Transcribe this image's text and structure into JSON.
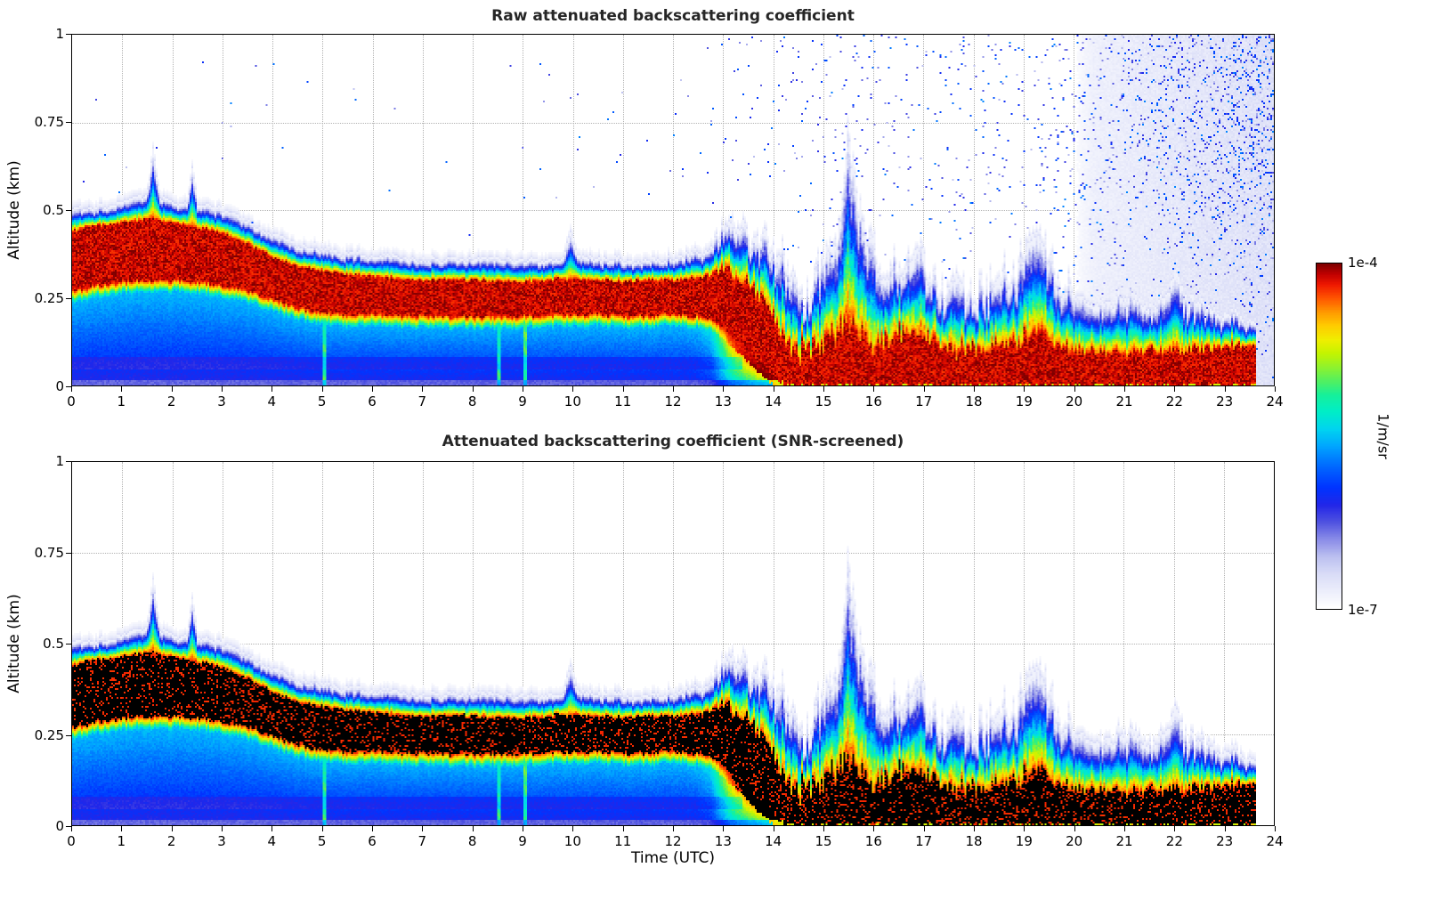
{
  "chart_data": {
    "type": "heatmap",
    "panels": {
      "raw": {
        "title": "Raw attenuated backscattering coefficient",
        "noise_shown": true,
        "black_core": false
      },
      "screened": {
        "title": "Attenuated backscattering coefficient (SNR-screened)",
        "noise_shown": false,
        "black_core": true
      }
    },
    "xlabel": "Time (UTC)",
    "ylabel": "Altitude (km)",
    "x_range": [
      0,
      24
    ],
    "y_range": [
      0,
      1
    ],
    "x_ticks": [
      "0",
      "1",
      "2",
      "3",
      "4",
      "5",
      "6",
      "7",
      "8",
      "9",
      "10",
      "11",
      "12",
      "13",
      "14",
      "15",
      "16",
      "17",
      "18",
      "19",
      "20",
      "21",
      "22",
      "23",
      "24"
    ],
    "y_tick_values": [
      0,
      0.25,
      0.5,
      0.75,
      1
    ],
    "y_tick_labels": [
      "0",
      "0.25",
      "0.5",
      "0.75",
      "1"
    ],
    "colorbar": {
      "max_label": "1e-4",
      "min_label": "1e-7",
      "unit": "1/m/sr",
      "scale": "log"
    },
    "data_end_utc": 23.65,
    "colormap": [
      [
        0.0,
        "#ffffff"
      ],
      [
        0.05,
        "#eceefb"
      ],
      [
        0.1,
        "#d9dcf7"
      ],
      [
        0.15,
        "#bcc0f0"
      ],
      [
        0.2,
        "#8a8ce8"
      ],
      [
        0.25,
        "#5053e0"
      ],
      [
        0.3,
        "#2226e8"
      ],
      [
        0.35,
        "#0033ff"
      ],
      [
        0.41,
        "#0066ff"
      ],
      [
        0.47,
        "#00a4ff"
      ],
      [
        0.52,
        "#00d4f0"
      ],
      [
        0.57,
        "#00eec8"
      ],
      [
        0.62,
        "#16f09a"
      ],
      [
        0.66,
        "#52f060"
      ],
      [
        0.7,
        "#8ef22e"
      ],
      [
        0.74,
        "#c4f400"
      ],
      [
        0.78,
        "#f0ee00"
      ],
      [
        0.82,
        "#ffcc00"
      ],
      [
        0.86,
        "#ff9900"
      ],
      [
        0.9,
        "#ff5500"
      ],
      [
        0.94,
        "#f01800"
      ],
      [
        0.97,
        "#c00000"
      ],
      [
        1.0,
        "#7d0000"
      ]
    ],
    "curves": {
      "mixed_layer_top_km": [
        [
          0,
          0.51
        ],
        [
          0.4,
          0.5
        ],
        [
          0.8,
          0.51
        ],
        [
          1.2,
          0.53
        ],
        [
          1.5,
          0.54
        ],
        [
          1.62,
          0.67
        ],
        [
          1.75,
          0.54
        ],
        [
          2.1,
          0.52
        ],
        [
          2.3,
          0.52
        ],
        [
          2.4,
          0.62
        ],
        [
          2.5,
          0.52
        ],
        [
          2.8,
          0.51
        ],
        [
          3.2,
          0.49
        ],
        [
          3.6,
          0.46
        ],
        [
          4.0,
          0.43
        ],
        [
          4.5,
          0.4
        ],
        [
          5.0,
          0.385
        ],
        [
          5.5,
          0.375
        ],
        [
          6.0,
          0.37
        ],
        [
          7.0,
          0.36
        ],
        [
          8.0,
          0.36
        ],
        [
          8.7,
          0.355
        ],
        [
          9.3,
          0.35
        ],
        [
          9.8,
          0.35
        ],
        [
          9.95,
          0.44
        ],
        [
          10.1,
          0.36
        ],
        [
          10.6,
          0.36
        ],
        [
          11.2,
          0.355
        ],
        [
          11.8,
          0.36
        ],
        [
          12.3,
          0.37
        ],
        [
          12.7,
          0.39
        ],
        [
          13.0,
          0.44
        ],
        [
          13.3,
          0.46
        ],
        [
          13.6,
          0.42
        ],
        [
          13.85,
          0.44
        ],
        [
          14.1,
          0.38
        ],
        [
          14.35,
          0.29
        ],
        [
          14.6,
          0.26
        ],
        [
          14.9,
          0.3
        ],
        [
          15.15,
          0.4
        ],
        [
          15.35,
          0.48
        ],
        [
          15.5,
          0.72
        ],
        [
          15.68,
          0.55
        ],
        [
          15.85,
          0.47
        ],
        [
          16.05,
          0.38
        ],
        [
          16.25,
          0.3
        ],
        [
          16.5,
          0.34
        ],
        [
          16.8,
          0.36
        ],
        [
          17.1,
          0.32
        ],
        [
          17.4,
          0.28
        ],
        [
          17.7,
          0.3
        ],
        [
          18.0,
          0.28
        ],
        [
          18.4,
          0.29
        ],
        [
          18.8,
          0.33
        ],
        [
          19.1,
          0.4
        ],
        [
          19.25,
          0.46
        ],
        [
          19.45,
          0.36
        ],
        [
          19.7,
          0.3
        ],
        [
          20.0,
          0.27
        ],
        [
          20.4,
          0.23
        ],
        [
          20.8,
          0.235
        ],
        [
          21.2,
          0.25
        ],
        [
          21.6,
          0.22
        ],
        [
          21.9,
          0.26
        ],
        [
          22.05,
          0.33
        ],
        [
          22.2,
          0.25
        ],
        [
          22.5,
          0.22
        ],
        [
          22.9,
          0.21
        ],
        [
          23.3,
          0.19
        ],
        [
          23.65,
          0.18
        ]
      ],
      "strong_layer_top_km": [
        [
          0,
          0.44
        ],
        [
          0.5,
          0.455
        ],
        [
          1.0,
          0.465
        ],
        [
          1.5,
          0.475
        ],
        [
          2.0,
          0.465
        ],
        [
          2.5,
          0.45
        ],
        [
          3.0,
          0.435
        ],
        [
          3.5,
          0.405
        ],
        [
          4.0,
          0.365
        ],
        [
          4.5,
          0.34
        ],
        [
          5.0,
          0.325
        ],
        [
          5.5,
          0.315
        ],
        [
          6.0,
          0.31
        ],
        [
          6.5,
          0.305
        ],
        [
          7.0,
          0.3
        ],
        [
          7.5,
          0.3
        ],
        [
          8.0,
          0.3
        ],
        [
          8.5,
          0.295
        ],
        [
          9.0,
          0.295
        ],
        [
          9.5,
          0.3
        ],
        [
          10.0,
          0.305
        ],
        [
          10.5,
          0.3
        ],
        [
          11.0,
          0.295
        ],
        [
          11.5,
          0.3
        ],
        [
          12.0,
          0.3
        ],
        [
          12.4,
          0.305
        ],
        [
          12.8,
          0.315
        ],
        [
          13.1,
          0.33
        ],
        [
          13.4,
          0.3
        ],
        [
          13.7,
          0.26
        ],
        [
          13.95,
          0.21
        ],
        [
          14.2,
          0.14
        ],
        [
          14.5,
          0.09
        ],
        [
          14.8,
          0.1
        ],
        [
          15.1,
          0.12
        ],
        [
          15.5,
          0.17
        ],
        [
          15.8,
          0.14
        ],
        [
          16.1,
          0.11
        ],
        [
          16.5,
          0.14
        ],
        [
          16.9,
          0.15
        ],
        [
          17.2,
          0.12
        ],
        [
          17.6,
          0.1
        ],
        [
          18.0,
          0.1
        ],
        [
          18.5,
          0.11
        ],
        [
          19.0,
          0.13
        ],
        [
          19.3,
          0.15
        ],
        [
          19.6,
          0.11
        ],
        [
          20.0,
          0.1
        ],
        [
          20.5,
          0.09
        ],
        [
          21.0,
          0.09
        ],
        [
          21.5,
          0.095
        ],
        [
          22.0,
          0.1
        ],
        [
          22.5,
          0.1
        ],
        [
          23.0,
          0.11
        ],
        [
          23.65,
          0.115
        ]
      ],
      "strong_layer_bottom_km": [
        [
          0,
          0.27
        ],
        [
          0.5,
          0.285
        ],
        [
          1.0,
          0.295
        ],
        [
          1.5,
          0.3
        ],
        [
          2.0,
          0.3
        ],
        [
          2.5,
          0.295
        ],
        [
          3.0,
          0.285
        ],
        [
          3.5,
          0.27
        ],
        [
          4.0,
          0.245
        ],
        [
          4.5,
          0.222
        ],
        [
          5.0,
          0.208
        ],
        [
          5.5,
          0.202
        ],
        [
          6.0,
          0.205
        ],
        [
          6.5,
          0.2
        ],
        [
          7.0,
          0.198
        ],
        [
          7.5,
          0.197
        ],
        [
          8.0,
          0.195
        ],
        [
          8.5,
          0.196
        ],
        [
          9.0,
          0.197
        ],
        [
          9.5,
          0.2
        ],
        [
          10.0,
          0.205
        ],
        [
          10.5,
          0.202
        ],
        [
          11.0,
          0.198
        ],
        [
          11.5,
          0.2
        ],
        [
          12.0,
          0.203
        ],
        [
          12.4,
          0.2
        ],
        [
          12.8,
          0.19
        ],
        [
          13.0,
          0.165
        ],
        [
          13.3,
          0.125
        ],
        [
          13.6,
          0.085
        ],
        [
          13.9,
          0.045
        ],
        [
          14.15,
          0.01
        ],
        [
          14.3,
          0.0
        ],
        [
          24,
          0.0
        ]
      ],
      "sub_layer_value": [
        [
          0,
          0.42
        ],
        [
          12.4,
          0.43
        ],
        [
          12.75,
          0.47
        ],
        [
          13.0,
          0.62
        ],
        [
          13.2,
          0.74
        ],
        [
          13.45,
          0.8
        ],
        [
          13.7,
          0.84
        ],
        [
          14.0,
          0.88
        ],
        [
          14.3,
          0.9
        ],
        [
          24,
          0.9
        ]
      ],
      "turbulence_noise_amp": [
        [
          0,
          0.025
        ],
        [
          12.5,
          0.03
        ],
        [
          13.0,
          0.08
        ],
        [
          13.6,
          0.12
        ],
        [
          14.2,
          0.14
        ],
        [
          16,
          0.14
        ],
        [
          18,
          0.12
        ],
        [
          20,
          0.1
        ],
        [
          21,
          0.07
        ],
        [
          23.65,
          0.06
        ]
      ],
      "jitter_amp": [
        [
          0,
          0.012
        ],
        [
          12.5,
          0.015
        ],
        [
          13.0,
          0.04
        ],
        [
          13.6,
          0.06
        ],
        [
          14.2,
          0.07
        ],
        [
          15,
          0.09
        ],
        [
          16,
          0.08
        ],
        [
          17,
          0.07
        ],
        [
          18,
          0.07
        ],
        [
          19,
          0.08
        ],
        [
          19.6,
          0.06
        ],
        [
          20,
          0.045
        ],
        [
          21,
          0.035
        ],
        [
          22,
          0.04
        ],
        [
          23.65,
          0.03
        ]
      ],
      "speckle_density": [
        [
          0,
          0.0008
        ],
        [
          8.6,
          0.0008
        ],
        [
          9.0,
          0.0025
        ],
        [
          11,
          0.003
        ],
        [
          12.5,
          0.004
        ],
        [
          13.5,
          0.007
        ],
        [
          14.2,
          0.012
        ],
        [
          15.0,
          0.018
        ],
        [
          15.6,
          0.03
        ],
        [
          16.2,
          0.02
        ],
        [
          17,
          0.018
        ],
        [
          17.8,
          0.025
        ],
        [
          18.6,
          0.028
        ],
        [
          19.4,
          0.03
        ],
        [
          20.2,
          0.05
        ],
        [
          21,
          0.06
        ],
        [
          22,
          0.09
        ],
        [
          22.8,
          0.12
        ],
        [
          23.4,
          0.14
        ],
        [
          24,
          0.16
        ]
      ],
      "haze_level": [
        [
          0,
          0
        ],
        [
          19.9,
          0
        ],
        [
          20.4,
          0.045
        ],
        [
          21.2,
          0.055
        ],
        [
          22,
          0.065
        ],
        [
          23,
          0.075
        ],
        [
          24,
          0.085
        ]
      ]
    },
    "precip_streaks": [
      {
        "t": 5.03,
        "w": 0.07,
        "v": 0.62
      },
      {
        "t": 8.52,
        "w": 0.06,
        "v": 0.6
      },
      {
        "t": 9.05,
        "w": 0.09,
        "v": 0.63
      }
    ]
  }
}
